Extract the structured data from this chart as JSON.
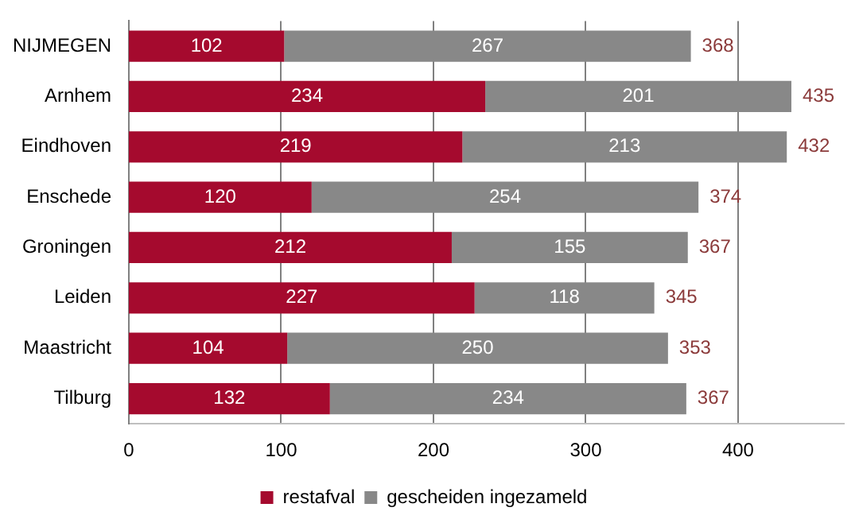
{
  "chart_data": {
    "type": "bar",
    "orientation": "horizontal",
    "stacked": true,
    "categories": [
      "NIJMEGEN",
      "Arnhem",
      "Eindhoven",
      "Enschede",
      "Groningen",
      "Leiden",
      "Maastricht",
      "Tilburg"
    ],
    "series": [
      {
        "name": "restafval",
        "color": "#a50a2e",
        "values": [
          102,
          234,
          219,
          120,
          212,
          227,
          104,
          132
        ]
      },
      {
        "name": "gescheiden ingezameld",
        "color": "#888888",
        "values": [
          267,
          201,
          213,
          254,
          155,
          118,
          250,
          234
        ]
      }
    ],
    "totals": [
      "368",
      "435",
      "432",
      "374",
      "367",
      "345",
      "353",
      "367"
    ],
    "xlim": [
      0,
      470
    ],
    "xticks": [
      0,
      100,
      200,
      300,
      400
    ],
    "grid": "x",
    "legend": "bottom",
    "data_labels": true
  }
}
